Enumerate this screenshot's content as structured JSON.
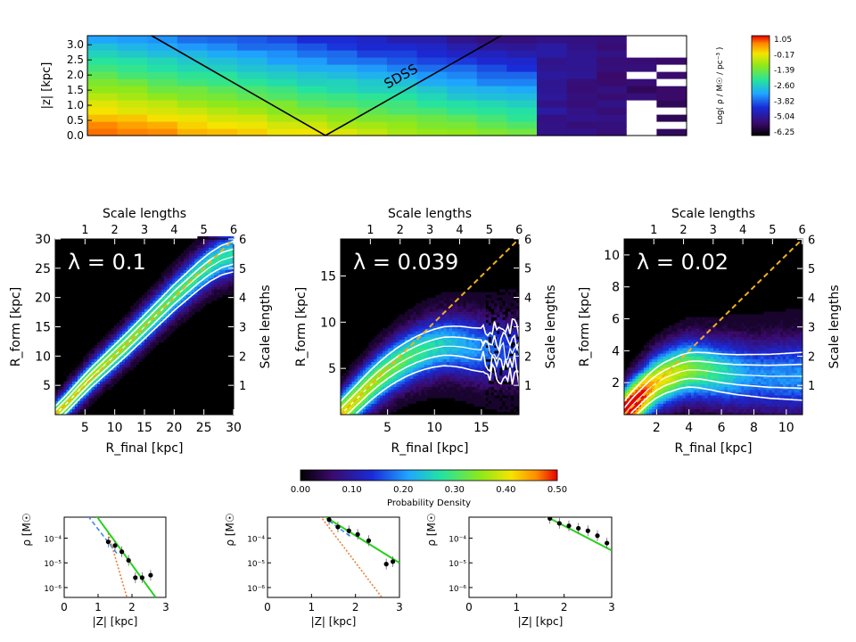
{
  "chart_data": [
    {
      "type": "heatmap",
      "ylabel": "|z|  [kpc]",
      "y_ticks": [
        "0.0",
        "0.5",
        "1.0",
        "1.5",
        "2.0",
        "2.5",
        "3.0"
      ],
      "ylim": [
        0,
        3.3
      ],
      "annotation": "SDSS",
      "colorbar": {
        "label": "Log( ρ / M☉ / pc⁻³ )",
        "ticks": [
          "1.05",
          "-0.17",
          "-1.39",
          "-2.60",
          "-3.82",
          "-5.04",
          "-6.25"
        ],
        "range": [
          -6.25,
          1.05
        ]
      }
    },
    {
      "type": "heatmap",
      "annotation": "λ = 0.1",
      "xlabel": "R_final [kpc]",
      "ylabel": "R_form [kpc]",
      "top_label": "Scale lengths",
      "right_label": "Scale lengths",
      "xlim": [
        0,
        30
      ],
      "ylim": [
        0,
        30
      ],
      "x_ticks": [
        5,
        10,
        15,
        20,
        25,
        30
      ],
      "y_ticks": [
        5,
        10,
        15,
        20,
        25,
        30
      ],
      "top_ticks": [
        1,
        2,
        3,
        4,
        5,
        6
      ],
      "right_ticks": [
        1,
        2,
        3,
        4,
        5,
        6
      ],
      "scale_length_kpc": 5,
      "ridge": [
        [
          0,
          0
        ],
        [
          2,
          2
        ],
        [
          4,
          4.2
        ],
        [
          6,
          6.3
        ],
        [
          8,
          8.2
        ],
        [
          10,
          10.1
        ],
        [
          12,
          12
        ],
        [
          14,
          14
        ],
        [
          16,
          16
        ],
        [
          18,
          18
        ],
        [
          20,
          20
        ],
        [
          22,
          21.8
        ],
        [
          24,
          23.6
        ],
        [
          26,
          25.2
        ],
        [
          28,
          26.4
        ],
        [
          30,
          27
        ]
      ],
      "contour_offset_kpc": [
        2.6,
        1.3
      ]
    },
    {
      "type": "heatmap",
      "annotation": "λ = 0.039",
      "xlabel": "R_final [kpc]",
      "ylabel": "R_form [kpc]",
      "top_label": "Scale lengths",
      "right_label": "Scale lengths",
      "xlim": [
        0,
        19
      ],
      "ylim": [
        0,
        19
      ],
      "x_ticks": [
        5,
        10,
        15
      ],
      "y_ticks": [
        5,
        10,
        15
      ],
      "top_ticks": [
        1,
        2,
        3,
        4,
        5,
        6
      ],
      "right_ticks": [
        1,
        2,
        3,
        4,
        5,
        6
      ],
      "scale_length_kpc": 3.17,
      "ridge": [
        [
          0,
          0
        ],
        [
          1,
          1
        ],
        [
          2,
          2
        ],
        [
          3,
          3
        ],
        [
          4,
          3.9
        ],
        [
          5,
          4.7
        ],
        [
          6,
          5.4
        ],
        [
          7,
          6
        ],
        [
          8,
          6.5
        ],
        [
          9,
          6.9
        ],
        [
          10,
          7.2
        ],
        [
          11,
          7.4
        ],
        [
          12,
          7.4
        ],
        [
          13,
          7.3
        ],
        [
          14,
          7.1
        ],
        [
          15,
          7
        ],
        [
          16,
          6.9
        ],
        [
          17,
          6.8
        ],
        [
          18,
          6.8
        ]
      ],
      "contour_offset_kpc": [
        2.6,
        1.2
      ]
    },
    {
      "type": "heatmap",
      "annotation": "λ = 0.02",
      "xlabel": "R_final [kpc]",
      "ylabel": "R_form [kpc]",
      "top_label": "Scale lengths",
      "right_label": "Scale lengths",
      "xlim": [
        0,
        11
      ],
      "ylim": [
        0,
        11
      ],
      "x_ticks": [
        2,
        4,
        6,
        8,
        10
      ],
      "y_ticks": [
        2,
        4,
        6,
        8,
        10
      ],
      "top_ticks": [
        1,
        2,
        3,
        4,
        5,
        6
      ],
      "right_ticks": [
        1,
        2,
        3,
        4,
        5,
        6
      ],
      "scale_length_kpc": 1.83,
      "ridge": [
        [
          0,
          0
        ],
        [
          0.5,
          0.6
        ],
        [
          1,
          1.1
        ],
        [
          1.5,
          1.6
        ],
        [
          2,
          2
        ],
        [
          2.5,
          2.3
        ],
        [
          3,
          2.5
        ],
        [
          3.5,
          2.7
        ],
        [
          4,
          2.8
        ],
        [
          4.5,
          2.8
        ],
        [
          5,
          2.75
        ],
        [
          6,
          2.6
        ],
        [
          7,
          2.5
        ],
        [
          8,
          2.45
        ],
        [
          9,
          2.4
        ],
        [
          10,
          2.4
        ],
        [
          11,
          2.4
        ]
      ],
      "contour_offset_kpc": [
        1.5,
        0.75
      ]
    },
    {
      "type": "colorbar",
      "label": "Probability Density",
      "ticks": [
        "0.00",
        "0.10",
        "0.20",
        "0.30",
        "0.40",
        "0.50"
      ],
      "range": [
        0,
        0.5
      ]
    },
    {
      "type": "scatter",
      "xlabel": "|Z|  [kpc]",
      "ylabel": "ρ  [M☉",
      "xlim": [
        0,
        3
      ],
      "x_ticks": [
        "0",
        "1",
        "2",
        "3"
      ],
      "y_ticks": [
        "10⁻⁴",
        "10⁻⁵",
        "10⁻⁶"
      ],
      "log_ylim": [
        -6.4,
        -3.15
      ],
      "points": [
        [
          1.3,
          -4.15
        ],
        [
          1.5,
          -4.3
        ],
        [
          1.7,
          -4.55
        ],
        [
          1.9,
          -4.9
        ],
        [
          2.1,
          -5.6
        ],
        [
          2.3,
          -5.6
        ],
        [
          2.55,
          -5.5
        ]
      ],
      "fit_green": [
        [
          0.95,
          -3.1
        ],
        [
          2.7,
          -6.4
        ]
      ],
      "fit_blue": [
        [
          0.7,
          -3.1
        ],
        [
          1.6,
          -4.7
        ]
      ],
      "fit_orange": [
        [
          1.3,
          -3.8
        ],
        [
          1.85,
          -6.4
        ]
      ]
    },
    {
      "type": "scatter",
      "xlabel": "|Z|  [kpc]",
      "ylabel": "ρ  [M☉",
      "xlim": [
        0,
        3
      ],
      "x_ticks": [
        "0",
        "1",
        "2",
        "3"
      ],
      "y_ticks": [
        "10⁻⁴",
        "10⁻⁵",
        "10⁻⁶"
      ],
      "log_ylim": [
        -6.4,
        -3.15
      ],
      "points": [
        [
          1.4,
          -3.25
        ],
        [
          1.6,
          -3.55
        ],
        [
          1.85,
          -3.7
        ],
        [
          2.05,
          -3.85
        ],
        [
          2.3,
          -4.1
        ],
        [
          2.7,
          -5.05
        ],
        [
          2.85,
          -4.95
        ]
      ],
      "fit_green": [
        [
          1.1,
          -2.9
        ],
        [
          3,
          -5
        ]
      ],
      "fit_blue": [
        [
          1.4,
          -3.3
        ],
        [
          1.9,
          -3.95
        ]
      ],
      "fit_orange": [
        [
          1.2,
          -3.1
        ],
        [
          2.6,
          -6.4
        ]
      ]
    },
    {
      "type": "scatter",
      "xlabel": "|Z|  [kpc]",
      "ylabel": "ρ  [M☉",
      "xlim": [
        0,
        3
      ],
      "x_ticks": [
        "0",
        "1",
        "2",
        "3"
      ],
      "y_ticks": [
        "10⁻⁴",
        "10⁻⁵",
        "10⁻⁶"
      ],
      "log_ylim": [
        -6.4,
        -3.15
      ],
      "points": [
        [
          1.7,
          -3.2
        ],
        [
          1.9,
          -3.4
        ],
        [
          2.1,
          -3.5
        ],
        [
          2.3,
          -3.6
        ],
        [
          2.5,
          -3.7
        ],
        [
          2.7,
          -3.9
        ],
        [
          2.9,
          -4.2
        ]
      ],
      "fit_green": [
        [
          1.6,
          -3.1
        ],
        [
          3,
          -4.5
        ]
      ]
    }
  ]
}
